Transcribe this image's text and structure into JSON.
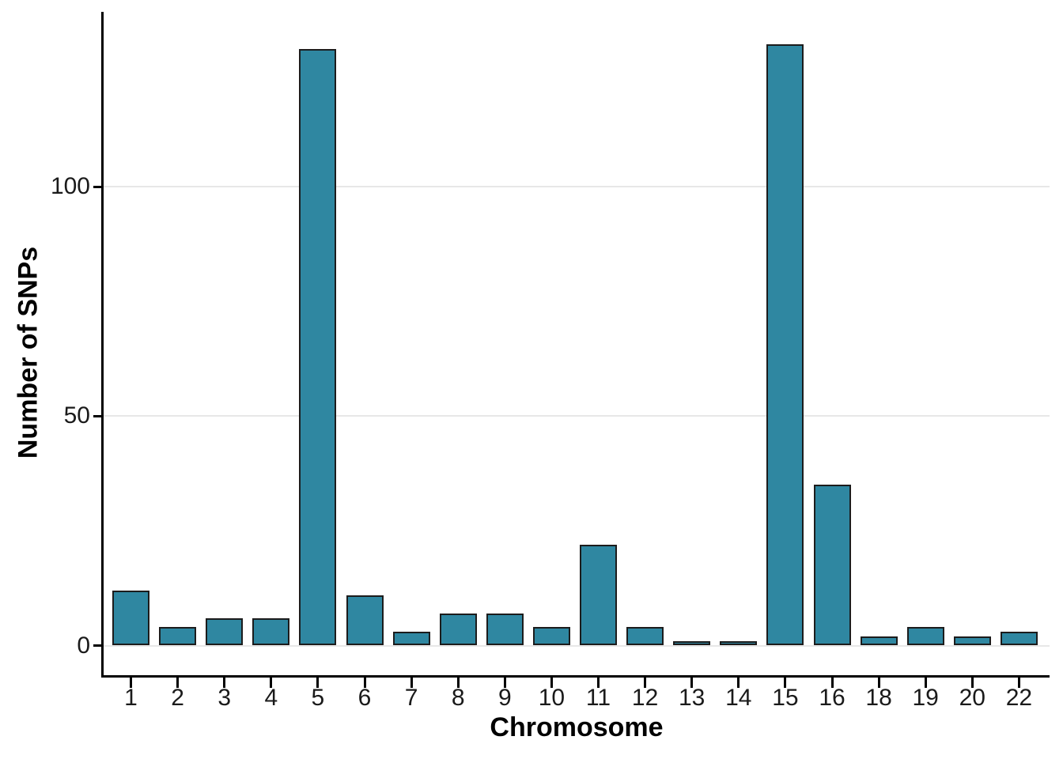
{
  "chart_data": {
    "type": "bar",
    "xlabel": "Chromosome",
    "ylabel": "Number of SNPs",
    "categories": [
      "1",
      "2",
      "3",
      "4",
      "5",
      "6",
      "7",
      "8",
      "9",
      "10",
      "11",
      "12",
      "13",
      "14",
      "15",
      "16",
      "18",
      "19",
      "20",
      "22"
    ],
    "values": [
      12,
      4,
      6,
      6,
      130,
      11,
      3,
      7,
      7,
      4,
      22,
      4,
      1,
      1,
      131,
      35,
      2,
      4,
      2,
      3
    ],
    "yticks": [
      0,
      50,
      100
    ],
    "ylim": [
      0,
      138
    ],
    "grid": "horizontal-major",
    "legend": "none",
    "colors": {
      "bar_fill": "#2f87a1",
      "bar_border": "#1c1c1c",
      "gridline": "#e7e7e7",
      "axis": "#000000",
      "tick_text": "#1a1a1a",
      "background": "#ffffff"
    }
  }
}
